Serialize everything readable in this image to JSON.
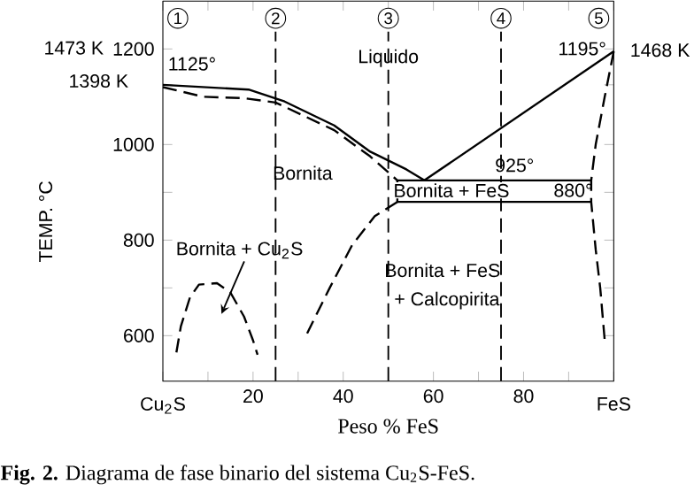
{
  "chart_data": {
    "type": "line",
    "xlabel": "Peso  %  FeS",
    "ylabel": "TEMP. °C",
    "xlim": [
      0,
      100
    ],
    "ylim": [
      505,
      1300
    ],
    "xticks": [
      {
        "value": 0,
        "label": null
      },
      {
        "value": 10,
        "label": null
      },
      20,
      {
        "value": 30,
        "label": null
      },
      40,
      {
        "value": 50,
        "label": null
      },
      60,
      {
        "value": 70,
        "label": null
      },
      80,
      {
        "value": 90,
        "label": null
      },
      {
        "value": 100,
        "label": null
      }
    ],
    "yticks": [
      600,
      {
        "value": 700,
        "label": null
      },
      800,
      {
        "value": 900,
        "label": null
      },
      1000,
      {
        "value": 1125,
        "label": null
      },
      1200
    ],
    "series": [
      {
        "color": "#000000",
        "line_style": "solid",
        "x": [
          0,
          19,
          27,
          38,
          46,
          54,
          58
        ],
        "values": [
          1125,
          1115,
          1090,
          1040,
          985,
          948,
          925
        ]
      },
      {
        "color": "#000000",
        "line_style": "solid",
        "x": [
          58,
          100
        ],
        "values": [
          925,
          1195
        ]
      },
      {
        "color": "#000000",
        "line_style": "dashed",
        "x": [
          0,
          9,
          18,
          25,
          38,
          46,
          52
        ],
        "values": [
          1120,
          1100,
          1097,
          1088,
          1030,
          975,
          925
        ]
      },
      {
        "color": "#000000",
        "line_style": "solid",
        "x": [
          52,
          95
        ],
        "values": [
          925,
          925
        ]
      },
      {
        "color": "#000000",
        "line_style": "solid",
        "x": [
          52,
          52,
          95
        ],
        "values": [
          925,
          880,
          880
        ]
      },
      {
        "color": "#000000",
        "line_style": "dashed",
        "x": [
          52,
          47,
          42,
          37,
          32
        ],
        "values": [
          880,
          850,
          790,
          700,
          605
        ]
      },
      {
        "color": "#000000",
        "line_style": "dashed",
        "x": [
          100,
          98,
          96,
          95,
          95,
          96,
          97,
          98
        ],
        "values": [
          1195,
          1100,
          1000,
          925,
          880,
          780,
          700,
          590
        ]
      },
      {
        "color": "#000000",
        "line_style": "dashed",
        "x": [
          3,
          4,
          6,
          8,
          12,
          15,
          18,
          20,
          21
        ],
        "values": [
          565,
          620,
          680,
          707,
          710,
          690,
          640,
          590,
          560
        ]
      }
    ],
    "ref_lines": [
      {
        "axis": "x",
        "value": 25,
        "line_style": "dashed"
      },
      {
        "axis": "x",
        "value": 50,
        "line_style": "dashed"
      },
      {
        "axis": "x",
        "value": 75,
        "line_style": "dashed"
      }
    ],
    "annotations": [
      "Bornita + Cu$_{2}$S",
      "Liquido",
      "Bornita",
      "Bornita + FeS",
      "+ Calcopirita",
      "Bornita + FeS",
      "880°",
      "925°",
      "1125°",
      "1195°",
      "1",
      "2",
      "3",
      "4",
      "5",
      "1473 K",
      "1398 K",
      "1468 K",
      "Cu$_{2}$S",
      "FeS",
      "**Fig. 2.** Diagrama de fase binario del sistema Cu$_{2}$S-FeS."
    ]
  }
}
